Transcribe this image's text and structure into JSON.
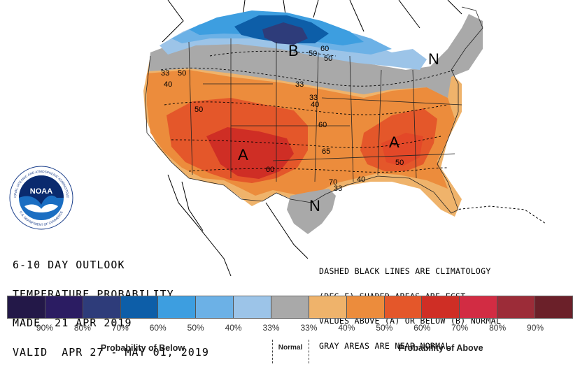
{
  "outlook": {
    "line1": "6-10 DAY OUTLOOK",
    "line2": "TEMPERATURE PROBABILITY",
    "line3": "MADE  21 APR 2019",
    "line4": "VALID  APR 27 - MAY 01, 2019"
  },
  "notes": {
    "line1": "DASHED BLACK LINES ARE CLIMATOLOGY",
    "line2": "(DEG F) SHADED AREAS ARE FCST",
    "line3": "VALUES ABOVE (A) OR BELOW (B) NORMAL",
    "line4": "GRAY AREAS ARE NEAR-NORMAL"
  },
  "logo": {
    "text": "NOAA",
    "ring_top": "NATIONAL OCEANIC AND ATMOSPHERIC ADMINISTRATION",
    "ring_bottom": "U.S. DEPARTMENT OF COMMERCE"
  },
  "map_labels": {
    "below": "B",
    "above_west": "A",
    "above_east": "A",
    "normal_ne": "N",
    "normal_tx": "N",
    "contours": [
      "60",
      "50",
      "50",
      "33",
      "50",
      "40",
      "33",
      "33",
      "40",
      "50",
      "60",
      "65",
      "60",
      "70",
      "40",
      "33",
      "50"
    ]
  },
  "legend": {
    "colors": [
      "#231848",
      "#2b1c62",
      "#2e3c7a",
      "#0d5ea8",
      "#3d9ee0",
      "#6cb1e6",
      "#9cc4e8",
      "#a9a9a9",
      "#efb36b",
      "#ec8c3c",
      "#e4572a",
      "#cf2e25",
      "#d22c43",
      "#9c2c38",
      "#6b2029"
    ],
    "ticks": [
      "90%",
      "80%",
      "70%",
      "60%",
      "50%",
      "40%",
      "33%",
      "33%",
      "40%",
      "50%",
      "60%",
      "70%",
      "80%",
      "90%"
    ],
    "below_label": "Probability of Below",
    "normal_label": "Normal",
    "above_label": "Probability of Above"
  }
}
